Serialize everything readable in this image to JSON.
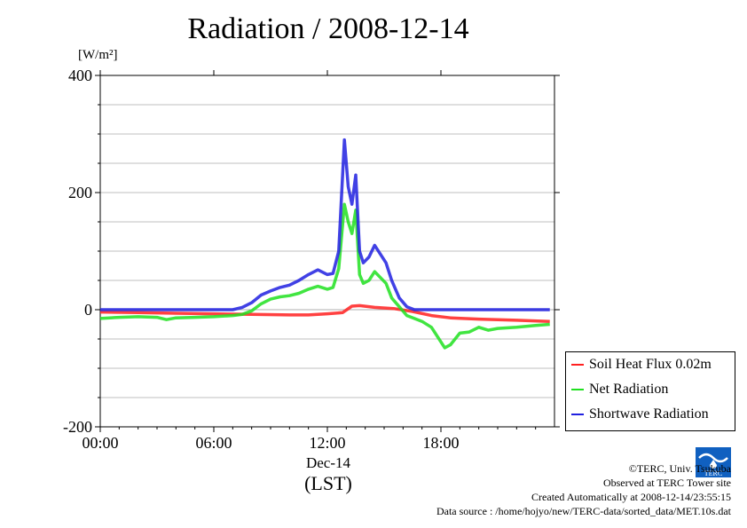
{
  "chart_data": {
    "type": "line",
    "title": "Radiation / 2008-12-14",
    "ylabel_unit": "[W/m²]",
    "ylim": [
      -200,
      400
    ],
    "yticks": [
      -200,
      0,
      200,
      400
    ],
    "xlim_hours": [
      0,
      24
    ],
    "xticks": [
      "00:00",
      "06:00",
      "12:00",
      "18:00"
    ],
    "xlabel_date": "Dec-14",
    "xlabel_tz": "(LST)",
    "grid": true,
    "legend_position": "bottom-right-outside",
    "series": [
      {
        "name": "Soil Heat Flux 0.02m",
        "color": "#ff2020",
        "x": [
          0,
          2,
          4,
          6,
          8,
          10,
          11,
          12,
          12.8,
          13.3,
          13.7,
          14.5,
          15.5,
          16.5,
          17.5,
          18.5,
          20,
          22,
          23.75
        ],
        "y": [
          -4,
          -5,
          -6,
          -7,
          -8,
          -9,
          -9,
          -7,
          -5,
          6,
          7,
          4,
          2,
          -3,
          -10,
          -14,
          -16,
          -18,
          -20
        ]
      },
      {
        "name": "Net Radiation",
        "color": "#20e020",
        "x": [
          0,
          1,
          2,
          3,
          3.5,
          4,
          5,
          6,
          7,
          7.5,
          8,
          8.5,
          9,
          9.5,
          10,
          10.5,
          11,
          11.5,
          12,
          12.3,
          12.6,
          12.9,
          13.1,
          13.3,
          13.5,
          13.7,
          13.9,
          14.2,
          14.5,
          14.8,
          15.1,
          15.4,
          15.8,
          16.2,
          16.6,
          17,
          17.5,
          18,
          18.2,
          18.5,
          19,
          19.5,
          20,
          20.5,
          21,
          22,
          23,
          23.75
        ],
        "y": [
          -15,
          -13,
          -12,
          -13,
          -17,
          -14,
          -13,
          -12,
          -10,
          -8,
          -2,
          10,
          18,
          22,
          24,
          28,
          35,
          40,
          35,
          38,
          70,
          180,
          150,
          130,
          170,
          60,
          45,
          50,
          65,
          55,
          45,
          20,
          5,
          -10,
          -15,
          -20,
          -30,
          -55,
          -65,
          -60,
          -40,
          -38,
          -30,
          -35,
          -32,
          -30,
          -27,
          -25
        ]
      },
      {
        "name": "Shortwave Radiation",
        "color": "#2020e0",
        "x": [
          0,
          2,
          4,
          6,
          6.5,
          7,
          7.5,
          8,
          8.5,
          9,
          9.5,
          10,
          10.5,
          11,
          11.5,
          12,
          12.3,
          12.6,
          12.9,
          13.1,
          13.3,
          13.5,
          13.7,
          13.9,
          14.2,
          14.5,
          14.8,
          15.1,
          15.4,
          15.8,
          16.2,
          16.6,
          17,
          18,
          20,
          22,
          23.75
        ],
        "y": [
          0,
          0,
          0,
          0,
          0,
          0,
          4,
          12,
          25,
          32,
          38,
          42,
          50,
          60,
          68,
          60,
          62,
          100,
          290,
          210,
          180,
          230,
          100,
          80,
          90,
          110,
          95,
          80,
          50,
          20,
          5,
          0,
          0,
          0,
          0,
          0,
          0
        ]
      }
    ]
  },
  "credits": {
    "line1": "©TERC, Univ. Tsukuba",
    "line2": "Observed at TERC Tower site",
    "line3": "Created Automatically at 2008-12-14/23:55:15",
    "line4": "Data source : /home/hojyo/new/TERC-data/sorted_data/MET.10s.dat"
  },
  "logo": {
    "text": "TERC",
    "color": "#1060c0"
  }
}
